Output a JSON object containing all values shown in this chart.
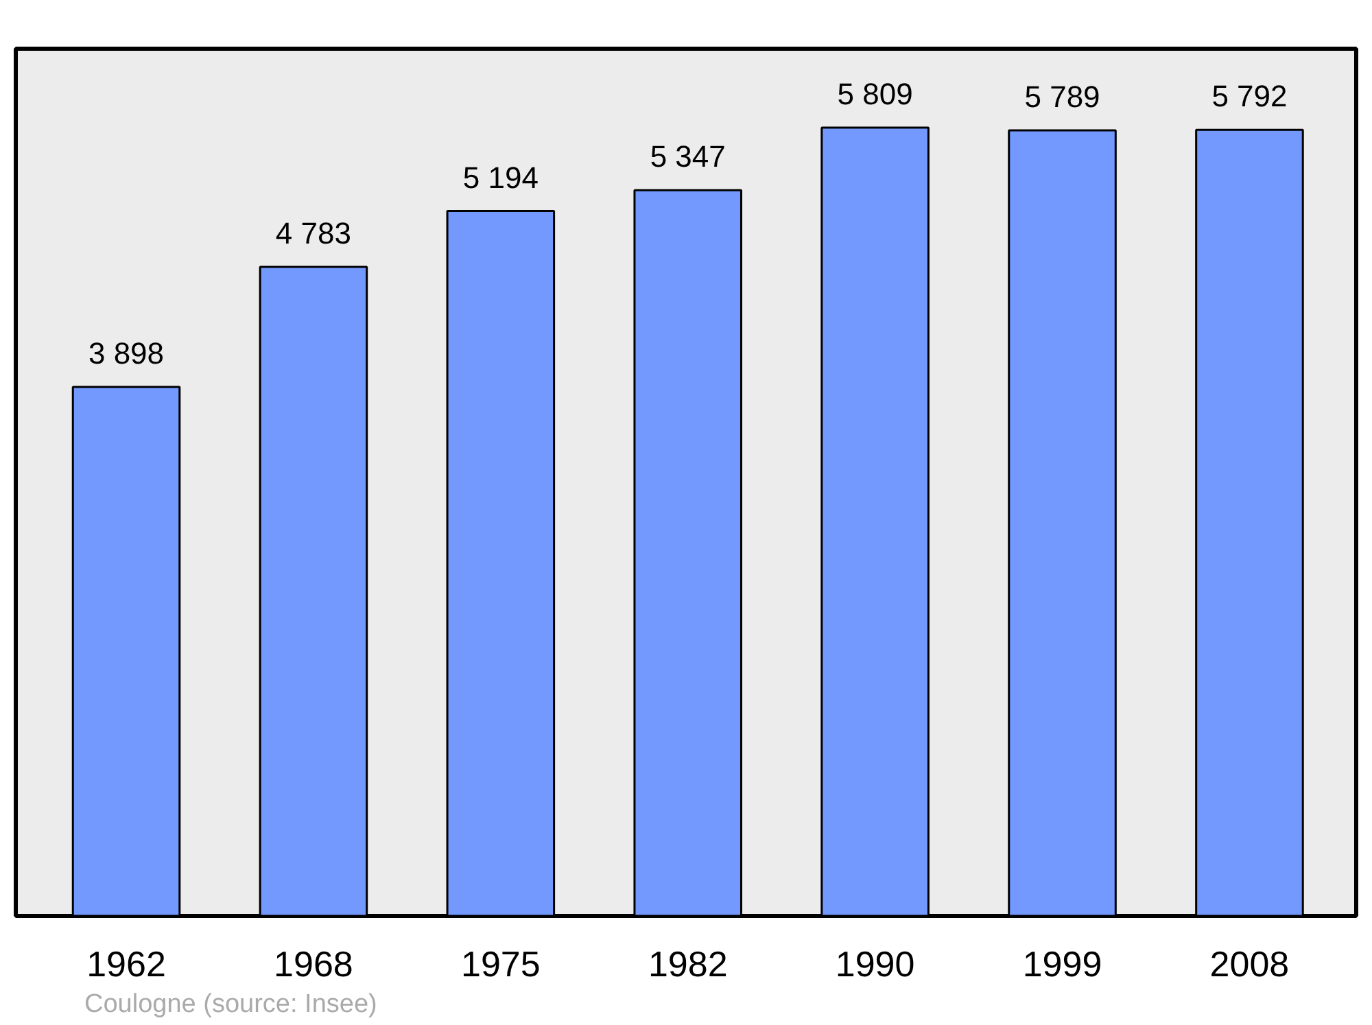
{
  "chart_data": {
    "type": "bar",
    "categories": [
      "1962",
      "1968",
      "1975",
      "1982",
      "1990",
      "1999",
      "2008"
    ],
    "values": [
      3898,
      4783,
      5194,
      5347,
      5809,
      5789,
      5792
    ],
    "value_labels": [
      "3 898",
      "4 783",
      "5 194",
      "5 347",
      "5 809",
      "5 789",
      "5 792"
    ],
    "color": "#7399ff",
    "ylim": [
      0,
      6390
    ],
    "tick_labels": "x",
    "grid": false,
    "annotations": [
      "Coulogne    (source: Insee)"
    ]
  }
}
